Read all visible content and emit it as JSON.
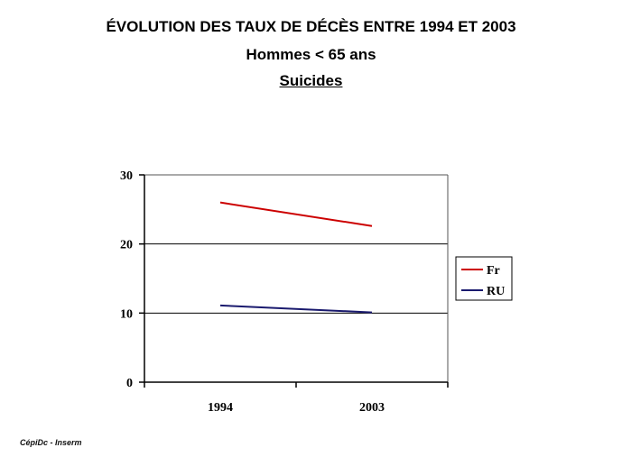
{
  "header": {
    "title": "ÉVOLUTION DES TAUX DE DÉCÈS ENTRE 1994 ET 2003",
    "subtitle": "Hommes < 65 ans",
    "topic": "Suicides"
  },
  "footer": {
    "credit": "CépiDc - Inserm"
  },
  "chart_data": {
    "type": "line",
    "categories": [
      "1994",
      "2003"
    ],
    "series": [
      {
        "name": "Fr",
        "values": [
          26,
          22.6
        ],
        "color": "#cc0000"
      },
      {
        "name": "RU",
        "values": [
          11.1,
          10.1
        ],
        "color": "#1a1a6e"
      }
    ],
    "yticks": [
      "0",
      "10",
      "20",
      "30"
    ],
    "ylim": [
      0,
      30
    ],
    "grid": true,
    "legend": "right"
  }
}
